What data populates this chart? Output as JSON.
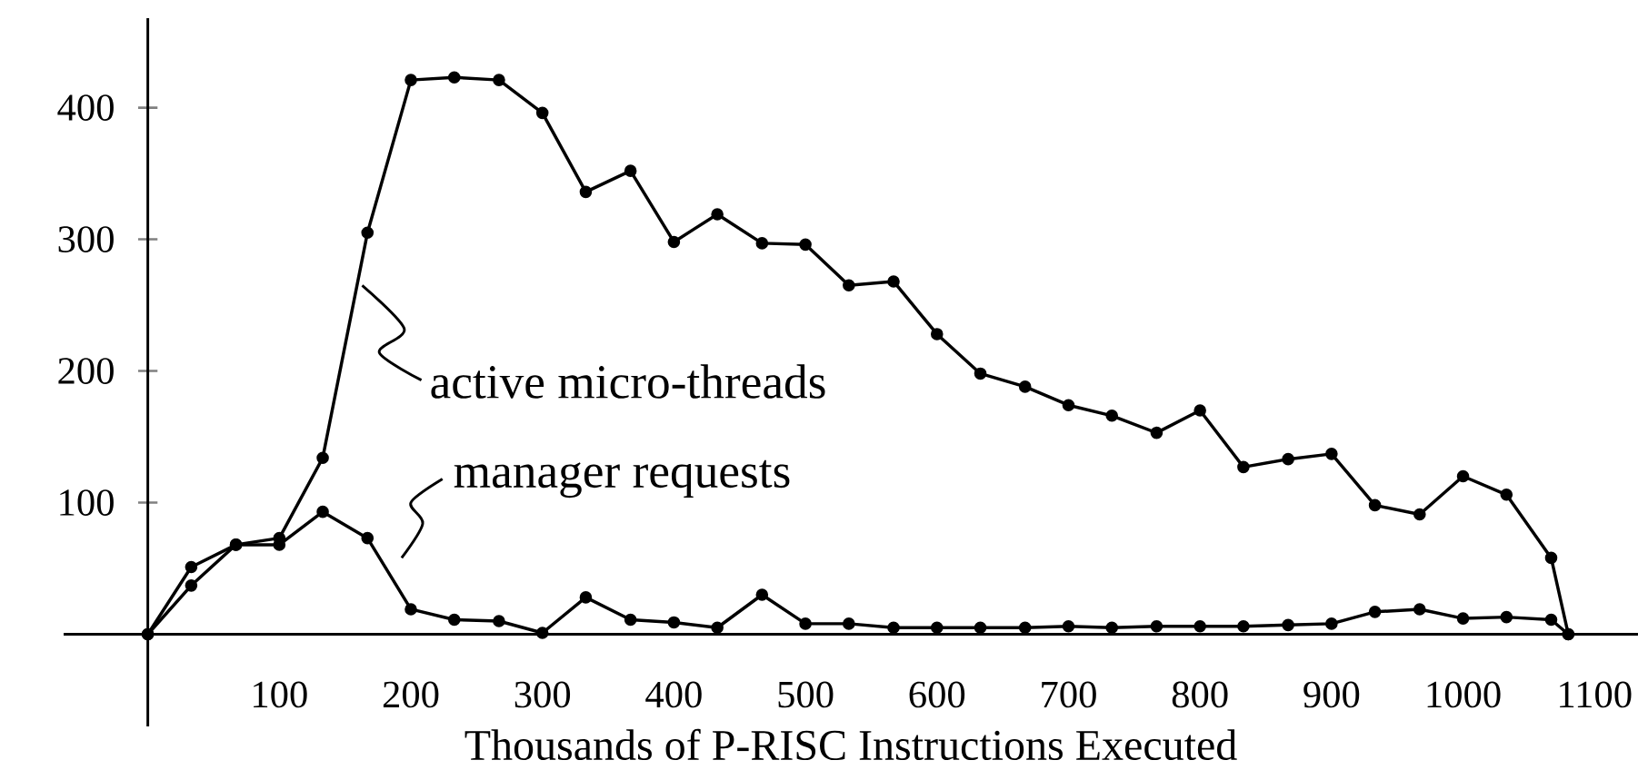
{
  "chart_data": {
    "type": "line",
    "xlabel": "Thousands of P-RISC Instructions Executed",
    "x": [
      0,
      33,
      67,
      100,
      133,
      167,
      200,
      233,
      267,
      300,
      333,
      367,
      400,
      433,
      467,
      500,
      533,
      567,
      600,
      633,
      667,
      700,
      733,
      767,
      800,
      833,
      867,
      900,
      933,
      967,
      1000,
      1033,
      1067,
      1080
    ],
    "series": [
      {
        "name": "active micro-threads",
        "color": "#000000",
        "values": [
          0,
          51,
          68,
          73,
          134,
          305,
          421,
          423,
          421,
          396,
          336,
          352,
          298,
          319,
          297,
          296,
          265,
          268,
          228,
          198,
          188,
          174,
          166,
          153,
          170,
          127,
          133,
          137,
          98,
          91,
          120,
          106,
          58,
          0
        ]
      },
      {
        "name": "manager requests",
        "color": "#000000",
        "values": [
          0,
          37,
          68,
          68,
          93,
          73,
          19,
          11,
          10,
          1,
          28,
          11,
          9,
          5,
          30,
          8,
          8,
          5,
          5,
          5,
          5,
          6,
          5,
          6,
          6,
          6,
          7,
          8,
          17,
          19,
          12,
          13,
          11,
          0
        ]
      }
    ],
    "xlim": [
      -64,
      1133
    ],
    "ylim": [
      -70,
      468
    ],
    "xticks": [
      100,
      200,
      300,
      400,
      500,
      600,
      700,
      800,
      900,
      1000,
      1100
    ],
    "yticks": [
      100,
      200,
      300,
      400
    ],
    "marker": "circle",
    "line_style": "solid",
    "grid": false
  }
}
